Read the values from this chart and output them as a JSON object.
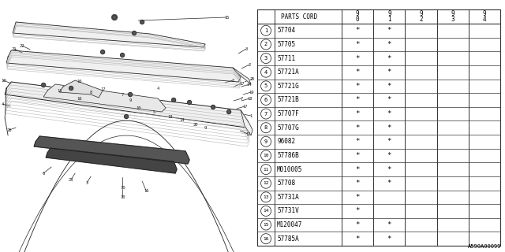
{
  "diagram_code": "A590A00099",
  "rows": [
    {
      "num": 1,
      "part": "57704",
      "c0": "*",
      "c1": "*",
      "c2": "",
      "c3": "",
      "c4": ""
    },
    {
      "num": 2,
      "part": "57705",
      "c0": "*",
      "c1": "*",
      "c2": "",
      "c3": "",
      "c4": ""
    },
    {
      "num": 3,
      "part": "57711",
      "c0": "*",
      "c1": "*",
      "c2": "",
      "c3": "",
      "c4": ""
    },
    {
      "num": 4,
      "part": "57721A",
      "c0": "*",
      "c1": "*",
      "c2": "",
      "c3": "",
      "c4": ""
    },
    {
      "num": 5,
      "part": "57721G",
      "c0": "*",
      "c1": "*",
      "c2": "",
      "c3": "",
      "c4": ""
    },
    {
      "num": 6,
      "part": "57721B",
      "c0": "*",
      "c1": "*",
      "c2": "",
      "c3": "",
      "c4": ""
    },
    {
      "num": 7,
      "part": "57707F",
      "c0": "*",
      "c1": "*",
      "c2": "",
      "c3": "",
      "c4": ""
    },
    {
      "num": 8,
      "part": "57707G",
      "c0": "*",
      "c1": "*",
      "c2": "",
      "c3": "",
      "c4": ""
    },
    {
      "num": 9,
      "part": "96082",
      "c0": "*",
      "c1": "*",
      "c2": "",
      "c3": "",
      "c4": ""
    },
    {
      "num": 10,
      "part": "57786B",
      "c0": "*",
      "c1": "*",
      "c2": "",
      "c3": "",
      "c4": ""
    },
    {
      "num": 11,
      "part": "M010005",
      "c0": "*",
      "c1": "*",
      "c2": "",
      "c3": "",
      "c4": ""
    },
    {
      "num": 12,
      "part": "57708",
      "c0": "*",
      "c1": "*",
      "c2": "",
      "c3": "",
      "c4": ""
    },
    {
      "num": 13,
      "part": "57731A",
      "c0": "*",
      "c1": "",
      "c2": "",
      "c3": "",
      "c4": ""
    },
    {
      "num": 14,
      "part": "57731V",
      "c0": "*",
      "c1": "",
      "c2": "",
      "c3": "",
      "c4": ""
    },
    {
      "num": 15,
      "part": "M120047",
      "c0": "*",
      "c1": "*",
      "c2": "",
      "c3": "",
      "c4": ""
    },
    {
      "num": 16,
      "part": "57785A",
      "c0": "*",
      "c1": "*",
      "c2": "",
      "c3": "",
      "c4": ""
    }
  ],
  "bg_color": "#ffffff",
  "lc": "#333333",
  "tc": "#000000"
}
